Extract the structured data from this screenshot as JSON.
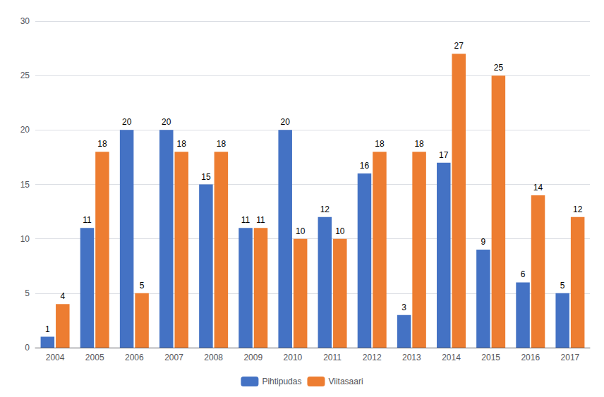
{
  "chart_data": {
    "type": "bar",
    "categories": [
      "2004",
      "2005",
      "2006",
      "2007",
      "2008",
      "2009",
      "2010",
      "2011",
      "2012",
      "2013",
      "2014",
      "2015",
      "2016",
      "2017"
    ],
    "series": [
      {
        "name": "Pihtipudas",
        "color": "#4472C4",
        "values": [
          1,
          11,
          20,
          20,
          15,
          11,
          20,
          12,
          16,
          3,
          17,
          9,
          6,
          5
        ]
      },
      {
        "name": "Viitasaari",
        "color": "#ED7D31",
        "values": [
          4,
          18,
          5,
          18,
          18,
          11,
          10,
          10,
          18,
          18,
          27,
          25,
          14,
          12
        ]
      }
    ],
    "ylim": [
      0,
      30
    ],
    "yticks": [
      0,
      5,
      10,
      15,
      20,
      25,
      30
    ],
    "grid": true,
    "legend": "bottom",
    "data_labels": true
  }
}
